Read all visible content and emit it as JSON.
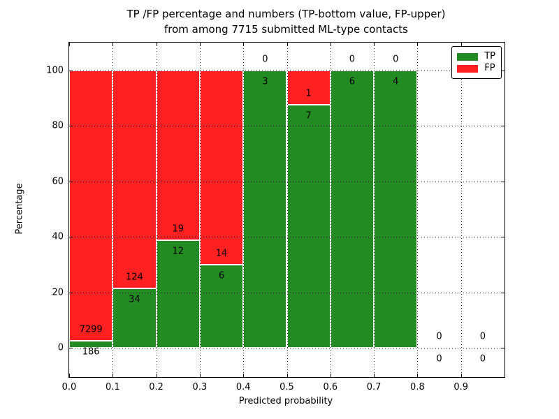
{
  "title": {
    "line1": "TP /FP percentage and numbers (TP-bottom value, FP-upper)",
    "line2": "from among 7715 submitted ML-type contacts"
  },
  "chart_data": {
    "type": "bar",
    "stacked": true,
    "title": "TP /FP percentage and numbers (TP-bottom value, FP-upper) from among 7715 submitted ML-type contacts",
    "xlabel": "Predicted probability",
    "ylabel": "Percentage",
    "xlim": [
      0.0,
      1.0
    ],
    "ylim": [
      -10.5,
      110.0
    ],
    "x_ticks": [
      0.0,
      0.1,
      0.2,
      0.3,
      0.4,
      0.5,
      0.6,
      0.7,
      0.8,
      0.9
    ],
    "x_tick_labels": [
      "0.0",
      "0.1",
      "0.2",
      "0.3",
      "0.4",
      "0.5",
      "0.6",
      "0.7",
      "0.8",
      "0.9"
    ],
    "y_ticks": [
      0,
      20,
      40,
      60,
      80,
      100
    ],
    "y_tick_labels": [
      "0",
      "20",
      "40",
      "60",
      "80",
      "100"
    ],
    "grid": true,
    "total_contacts": 7715,
    "legend": {
      "position": "upper right"
    },
    "series": [
      {
        "name": "TP",
        "color": "#228b22",
        "values": [
          186,
          34,
          12,
          6,
          3,
          7,
          6,
          4,
          0,
          0
        ]
      },
      {
        "name": "FP",
        "color": "#ff2121",
        "values": [
          7299,
          124,
          19,
          14,
          0,
          1,
          0,
          0,
          0,
          0
        ]
      }
    ],
    "bins": [
      {
        "x0": 0.0,
        "x1": 0.1,
        "tp": 186,
        "fp": 7299,
        "tp_pct": 2.49
      },
      {
        "x0": 0.1,
        "x1": 0.2,
        "tp": 34,
        "fp": 124,
        "tp_pct": 21.52
      },
      {
        "x0": 0.2,
        "x1": 0.3,
        "tp": 12,
        "fp": 19,
        "tp_pct": 38.71
      },
      {
        "x0": 0.3,
        "x1": 0.4,
        "tp": 6,
        "fp": 14,
        "tp_pct": 30.0
      },
      {
        "x0": 0.4,
        "x1": 0.5,
        "tp": 3,
        "fp": 0,
        "tp_pct": 100.0
      },
      {
        "x0": 0.5,
        "x1": 0.6,
        "tp": 7,
        "fp": 1,
        "tp_pct": 87.5
      },
      {
        "x0": 0.6,
        "x1": 0.7,
        "tp": 6,
        "fp": 0,
        "tp_pct": 100.0
      },
      {
        "x0": 0.7,
        "x1": 0.8,
        "tp": 4,
        "fp": 0,
        "tp_pct": 100.0
      },
      {
        "x0": 0.8,
        "x1": 0.9,
        "tp": 0,
        "fp": 0,
        "tp_pct": 0.0
      },
      {
        "x0": 0.9,
        "x1": 1.0,
        "tp": 0,
        "fp": 0,
        "tp_pct": 0.0
      }
    ]
  }
}
